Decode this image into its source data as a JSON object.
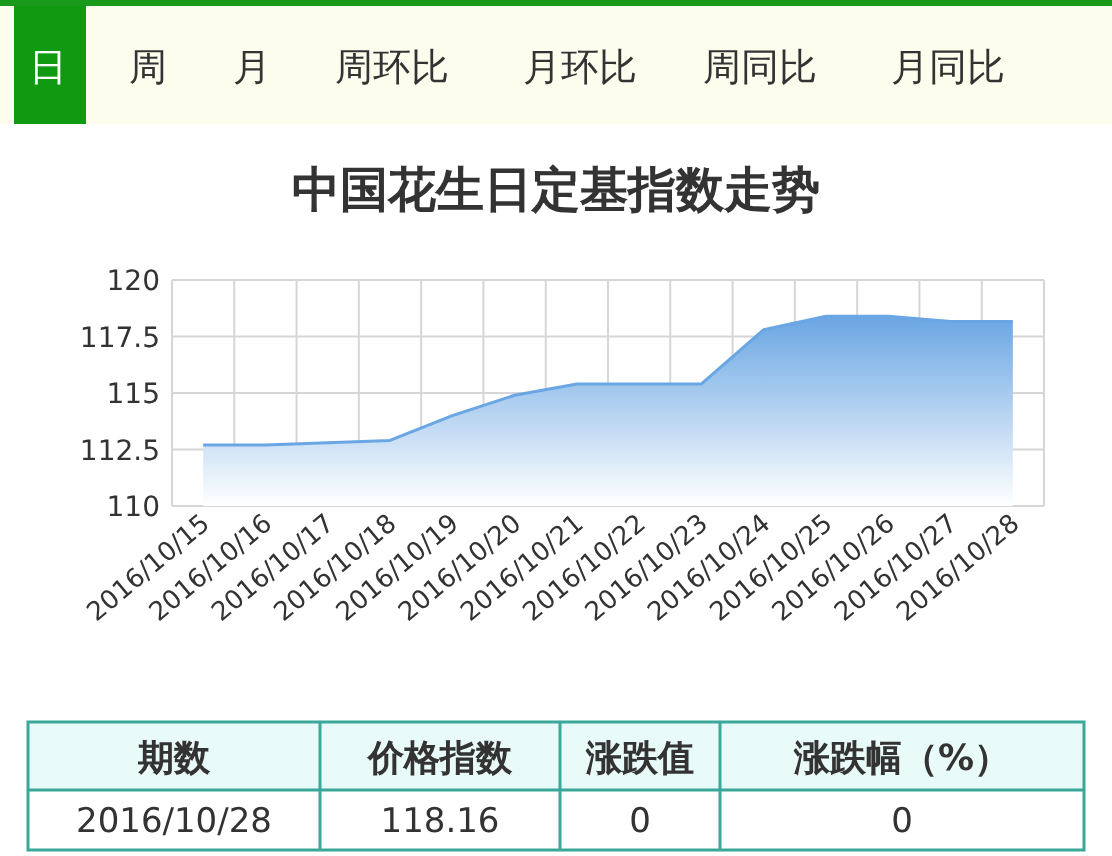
{
  "chart_data": {
    "type": "area",
    "title": "中国花生日定基指数走势",
    "categories": [
      "2016/10/15",
      "2016/10/16",
      "2016/10/17",
      "2016/10/18",
      "2016/10/19",
      "2016/10/20",
      "2016/10/21",
      "2016/10/22",
      "2016/10/23",
      "2016/10/24",
      "2016/10/25",
      "2016/10/26",
      "2016/10/27",
      "2016/10/28"
    ],
    "values": [
      112.7,
      112.7,
      112.8,
      112.9,
      114.0,
      114.9,
      115.4,
      115.4,
      115.4,
      117.8,
      118.4,
      118.4,
      118.16,
      118.16
    ],
    "color": "#6aa6e3",
    "ylim": [
      110,
      120
    ],
    "yticks": [
      110,
      112.5,
      115,
      117.5,
      120
    ],
    "grid": true,
    "annotations": [
      "日",
      "周",
      "月",
      "周环比",
      "月环比",
      "周同比",
      "月同比",
      "期数",
      "价格指数",
      "涨跌值",
      "涨跌幅（%）",
      "2016/10/28",
      "118.16",
      "0",
      "0"
    ]
  }
}
